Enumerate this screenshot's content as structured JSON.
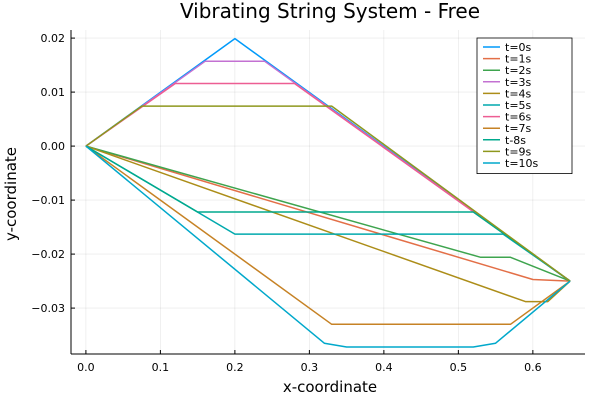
{
  "chart_data": {
    "type": "line",
    "title": "Vibrating String System - Free",
    "xlabel": "x-coordinate",
    "ylabel": "y-coordinate",
    "xlim": [
      -0.02,
      0.67
    ],
    "ylim": [
      -0.0385,
      0.0215
    ],
    "xticks": [
      0.0,
      0.1,
      0.2,
      0.3,
      0.4,
      0.5,
      0.6
    ],
    "xtick_labels": [
      "0.0",
      "0.1",
      "0.2",
      "0.3",
      "0.4",
      "0.5",
      "0.6"
    ],
    "yticks": [
      0.02,
      0.01,
      0.0,
      -0.01,
      -0.02,
      -0.03
    ],
    "ytick_labels": [
      "0.02",
      "0.01",
      "0.00",
      "−0.01",
      "−0.02",
      "−0.03"
    ],
    "grid": true,
    "legend_position": "top-right",
    "series": [
      {
        "name": "t=0s",
        "color": "#009AFA",
        "x": [
          0.0,
          0.2,
          0.65
        ],
        "y": [
          0.0,
          0.0199,
          -0.025
        ]
      },
      {
        "name": "t=1s",
        "color": "#E36F47",
        "x": [
          0.0,
          0.6,
          0.65
        ],
        "y": [
          0.0,
          -0.0247,
          -0.025
        ]
      },
      {
        "name": "t=2s",
        "color": "#3EA44E",
        "x": [
          0.0,
          0.53,
          0.57,
          0.65
        ],
        "y": [
          0.0,
          -0.0206,
          -0.0206,
          -0.025
        ]
      },
      {
        "name": "t=3s",
        "color": "#C371D2",
        "x": [
          0.0,
          0.16,
          0.24,
          0.65
        ],
        "y": [
          0.0,
          0.0157,
          0.0157,
          -0.025
        ]
      },
      {
        "name": "t=4s",
        "color": "#AC8D18",
        "x": [
          0.0,
          0.59,
          0.62,
          0.65
        ],
        "y": [
          0.0,
          -0.0288,
          -0.0288,
          -0.025
        ]
      },
      {
        "name": "t=5s",
        "color": "#00A9AD",
        "x": [
          0.0,
          0.2,
          0.5,
          0.56,
          0.65
        ],
        "y": [
          0.0,
          -0.0163,
          -0.0163,
          -0.0163,
          -0.025
        ]
      },
      {
        "name": "t=6s",
        "color": "#ED5E93",
        "x": [
          0.0,
          0.12,
          0.28,
          0.65
        ],
        "y": [
          0.0,
          0.0116,
          0.0116,
          -0.025
        ]
      },
      {
        "name": "t=7s",
        "color": "#C68225",
        "x": [
          0.0,
          0.33,
          0.57,
          0.65
        ],
        "y": [
          0.0,
          -0.033,
          -0.033,
          -0.025
        ]
      },
      {
        "name": "t-8s",
        "color": "#00A98D",
        "x": [
          0.0,
          0.15,
          0.52,
          0.65
        ],
        "y": [
          0.0,
          -0.0122,
          -0.0122,
          -0.025
        ]
      },
      {
        "name": "t=9s",
        "color": "#8E971D",
        "x": [
          0.0,
          0.075,
          0.33,
          0.65
        ],
        "y": [
          0.0,
          0.0074,
          0.0074,
          -0.025
        ]
      },
      {
        "name": "t=10s",
        "color": "#00A8CB",
        "x": [
          0.0,
          0.32,
          0.35,
          0.52,
          0.55,
          0.65
        ],
        "y": [
          0.0,
          -0.0365,
          -0.0372,
          -0.0372,
          -0.0365,
          -0.025
        ]
      }
    ]
  }
}
